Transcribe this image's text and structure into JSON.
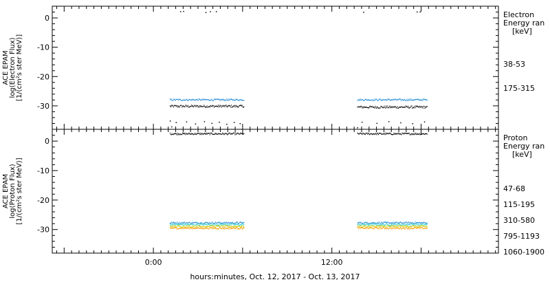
{
  "chart_data": [
    {
      "type": "scatter",
      "panel": "electron",
      "ylabel": [
        "ACE EPAM",
        "log(Electron Flux)",
        "[1/(cm²s ster MeV)]"
      ],
      "ylim": [
        -38,
        4
      ],
      "yticks": [
        0,
        -10,
        -20,
        -30
      ],
      "legend_title": [
        "Electron",
        "Energy ran",
        "[keV]"
      ],
      "legend_placement": "right",
      "series": [
        {
          "name": "38-53",
          "color": "#000000",
          "segments": [
            {
              "start": 0.55,
              "end": 3.05,
              "level": -30.0,
              "spread": 0.4
            },
            {
              "start": 6.85,
              "end": 9.2,
              "level": -30.3,
              "spread": 0.4
            }
          ],
          "extra_points": [
            [
              0.9,
              2.3
            ],
            [
              1.0,
              2.4
            ],
            [
              1.75,
              2.0
            ],
            [
              1.9,
              2.3
            ],
            [
              2.1,
              2.3
            ],
            [
              7.05,
              2.1
            ],
            [
              8.85,
              2.2
            ],
            [
              8.95,
              2.2
            ],
            [
              0.55,
              -35.0
            ],
            [
              0.75,
              -35.5
            ],
            [
              1.1,
              -35.3
            ],
            [
              1.4,
              -36.0
            ],
            [
              1.7,
              -35.2
            ],
            [
              1.95,
              -35.8
            ],
            [
              2.2,
              -35.4
            ],
            [
              2.45,
              -36.1
            ],
            [
              2.7,
              -35.5
            ],
            [
              2.9,
              -35.9
            ],
            [
              0.6,
              -37.0
            ],
            [
              6.85,
              -37.3
            ],
            [
              7.0,
              -35.4
            ],
            [
              7.5,
              -35.8
            ],
            [
              7.9,
              -35.2
            ],
            [
              8.3,
              -35.6
            ],
            [
              8.7,
              -35.9
            ],
            [
              9.1,
              -35.3
            ]
          ]
        },
        {
          "name": "175-315",
          "color": "#1f8bd6",
          "segments": [
            {
              "start": 0.55,
              "end": 3.05,
              "level": -27.8,
              "spread": 0.3
            },
            {
              "start": 6.85,
              "end": 9.2,
              "level": -27.8,
              "spread": 0.3
            }
          ]
        }
      ]
    },
    {
      "type": "scatter",
      "panel": "proton",
      "ylabel": [
        "ACE EPAM",
        "log(Proton Flux)",
        "[1/(cm²s ster MeV)]"
      ],
      "ylim": [
        -38,
        4
      ],
      "yticks": [
        0,
        -10,
        -20,
        -30
      ],
      "legend_title": [
        "Proton",
        "Energy ran",
        "[keV]"
      ],
      "legend_placement": "right",
      "series": [
        {
          "name": "47-68",
          "color": "#000000",
          "segments": [
            {
              "start": 0.55,
              "end": 3.05,
              "level": 2.6,
              "spread": 0.3
            },
            {
              "start": 6.85,
              "end": 9.2,
              "level": 2.6,
              "spread": 0.3
            }
          ]
        },
        {
          "name": "115-195",
          "color": "#1f8bd6",
          "segments": [
            {
              "start": 0.55,
              "end": 3.05,
              "level": -27.6,
              "spread": 0.3
            },
            {
              "start": 6.85,
              "end": 9.2,
              "level": -27.6,
              "spread": 0.3
            }
          ]
        },
        {
          "name": "310-580",
          "color": "#33cccc",
          "segments": [
            {
              "start": 0.55,
              "end": 3.05,
              "level": -28.2,
              "spread": 0.3
            },
            {
              "start": 6.85,
              "end": 9.2,
              "level": -28.2,
              "spread": 0.3
            }
          ]
        },
        {
          "name": "795-1193",
          "color": "#cccc00",
          "segments": [
            {
              "start": 0.55,
              "end": 3.05,
              "level": -28.8,
              "spread": 0.3
            },
            {
              "start": 6.85,
              "end": 9.2,
              "level": -28.8,
              "spread": 0.3
            }
          ]
        },
        {
          "name": "1060-1900",
          "color": "#ff9900",
          "segments": [
            {
              "start": 0.55,
              "end": 3.05,
              "level": -29.4,
              "spread": 0.3
            },
            {
              "start": 6.85,
              "end": 9.2,
              "level": -29.4,
              "spread": 0.3
            }
          ]
        }
      ]
    }
  ],
  "x_axis": {
    "range": [
      -3.4,
      11.6
    ],
    "label": "hours:minutes, Oct. 12, 2017 - Oct. 13, 2017",
    "tick_labels": [
      {
        "value": 0,
        "label": "0:00"
      },
      {
        "value": 6,
        "label": "12:00"
      }
    ],
    "major_ticks": [
      -3,
      0,
      3,
      6,
      9
    ],
    "minor_tick_step": 0.25
  }
}
